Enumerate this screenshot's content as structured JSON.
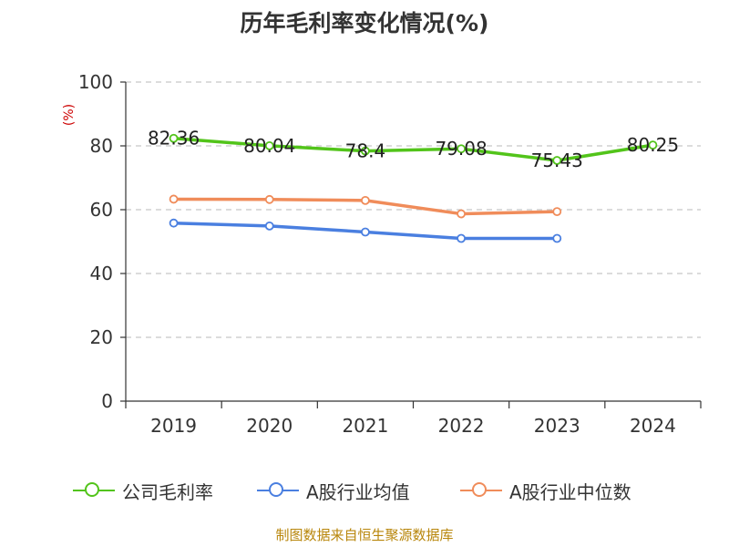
{
  "title": "历年毛利率变化情况(%)",
  "source": "制图数据来自恒生聚源数据库",
  "chart_data": {
    "type": "line",
    "categories": [
      "2019",
      "2020",
      "2021",
      "2022",
      "2023",
      "2024"
    ],
    "ylabel": "(%)",
    "ylim": [
      0,
      100
    ],
    "yticks": [
      "0",
      "20",
      "40",
      "60",
      "80",
      "100"
    ],
    "grid": true,
    "legend_position": "bottom",
    "series": [
      {
        "name": "公司毛利率",
        "color": "#52c41a",
        "values": [
          82.36,
          80.04,
          78.4,
          79.08,
          75.43,
          80.25
        ],
        "labels": [
          "82.36",
          "80.04",
          "78.4",
          "79.08",
          "75.43",
          "80.25"
        ]
      },
      {
        "name": "A股行业均值",
        "color": "#4a7fe0",
        "values": [
          55.8,
          54.9,
          53.0,
          51.0,
          51.0,
          null
        ]
      },
      {
        "name": "A股行业中位数",
        "color": "#f08c5a",
        "values": [
          63.3,
          63.2,
          62.9,
          58.7,
          59.4,
          null
        ]
      }
    ]
  }
}
